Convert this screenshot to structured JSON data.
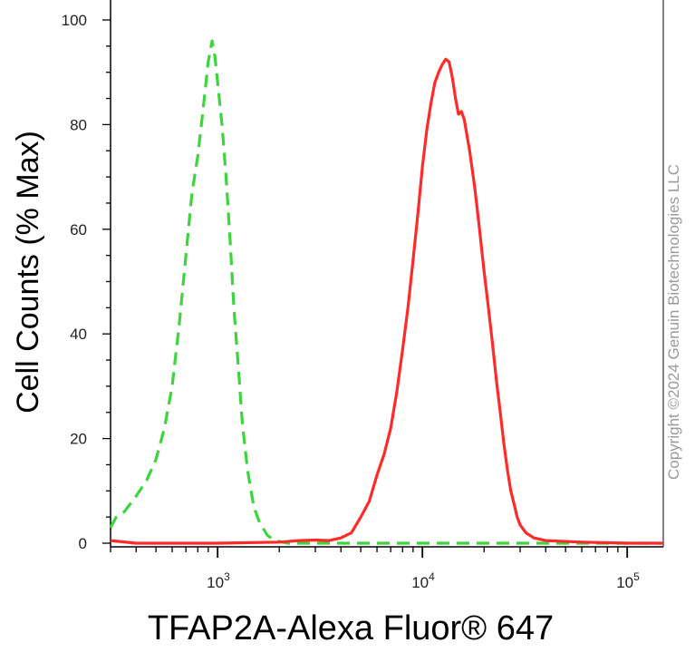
{
  "chart_data": {
    "type": "line",
    "title": "",
    "xlabel": "TFAP2A-Alexa Fluor® 647",
    "ylabel": "Cell Counts (% Max)",
    "x_scale": "log",
    "xlim": [
      300,
      150000
    ],
    "ylim": [
      0,
      100
    ],
    "x_ticks": [
      {
        "value": 1000,
        "base": "10",
        "exp": "3"
      },
      {
        "value": 10000,
        "base": "10",
        "exp": "4"
      },
      {
        "value": 100000,
        "base": "10",
        "exp": "5"
      }
    ],
    "y_ticks": [
      0,
      20,
      40,
      60,
      80,
      100
    ],
    "grid": false,
    "series": [
      {
        "color": "#3dd43d",
        "style": "dashed",
        "points": [
          [
            300,
            3
          ],
          [
            320,
            5
          ],
          [
            350,
            6
          ],
          [
            400,
            9
          ],
          [
            450,
            12
          ],
          [
            500,
            16
          ],
          [
            550,
            22
          ],
          [
            600,
            30
          ],
          [
            650,
            42
          ],
          [
            700,
            55
          ],
          [
            750,
            67
          ],
          [
            800,
            74
          ],
          [
            850,
            83
          ],
          [
            900,
            92
          ],
          [
            940,
            96
          ],
          [
            970,
            93
          ],
          [
            1000,
            88
          ],
          [
            1050,
            80
          ],
          [
            1100,
            70
          ],
          [
            1150,
            58
          ],
          [
            1200,
            45
          ],
          [
            1260,
            34
          ],
          [
            1320,
            23
          ],
          [
            1400,
            14
          ],
          [
            1500,
            7
          ],
          [
            1600,
            4
          ],
          [
            1750,
            1.5
          ],
          [
            1900,
            0.5
          ],
          [
            2200,
            0
          ],
          [
            5000,
            0
          ],
          [
            150000,
            0
          ]
        ]
      },
      {
        "color": "#ff2a2a",
        "style": "solid",
        "points": [
          [
            300,
            0.5
          ],
          [
            400,
            0
          ],
          [
            600,
            0
          ],
          [
            1000,
            0
          ],
          [
            2000,
            0.2
          ],
          [
            2500,
            0.5
          ],
          [
            3000,
            0.6
          ],
          [
            3500,
            0.5
          ],
          [
            4000,
            1
          ],
          [
            4500,
            2
          ],
          [
            5000,
            5
          ],
          [
            5500,
            8
          ],
          [
            6000,
            13
          ],
          [
            6500,
            17
          ],
          [
            7000,
            22
          ],
          [
            7500,
            29
          ],
          [
            8000,
            37
          ],
          [
            8500,
            45
          ],
          [
            9000,
            54
          ],
          [
            9500,
            63
          ],
          [
            10000,
            72
          ],
          [
            10500,
            79
          ],
          [
            11000,
            84
          ],
          [
            11500,
            88
          ],
          [
            12000,
            90
          ],
          [
            12500,
            91.5
          ],
          [
            13000,
            92.5
          ],
          [
            13500,
            92
          ],
          [
            14000,
            89
          ],
          [
            14500,
            85
          ],
          [
            15000,
            82
          ],
          [
            15500,
            82.5
          ],
          [
            16000,
            81
          ],
          [
            17000,
            75
          ],
          [
            18000,
            68
          ],
          [
            19000,
            60
          ],
          [
            20000,
            52
          ],
          [
            21000,
            45
          ],
          [
            22000,
            38
          ],
          [
            23000,
            31
          ],
          [
            24000,
            25
          ],
          [
            25000,
            19
          ],
          [
            26000,
            14
          ],
          [
            27000,
            10
          ],
          [
            28000,
            7.5
          ],
          [
            29000,
            5
          ],
          [
            30000,
            3.5
          ],
          [
            32000,
            2
          ],
          [
            35000,
            1
          ],
          [
            40000,
            0.5
          ],
          [
            60000,
            0.2
          ],
          [
            100000,
            0
          ],
          [
            150000,
            0
          ]
        ]
      }
    ]
  },
  "watermark": "Copyright ©2024 Genuin Biotechnologies LLC"
}
